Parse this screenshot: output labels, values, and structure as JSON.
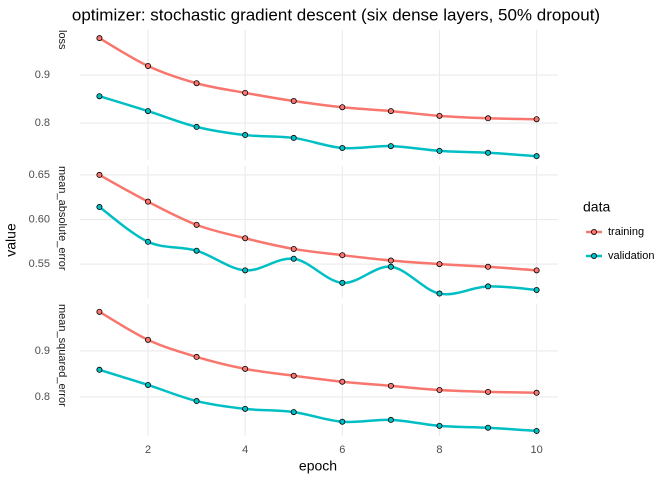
{
  "title": "optimizer: stochastic gradient descent (six dense layers, 50% dropout)",
  "x_label": "epoch",
  "y_label": "value",
  "legend_title": "data",
  "chart_data": [
    {
      "type": "line",
      "facet": "loss",
      "x": [
        1,
        2,
        3,
        4,
        5,
        6,
        7,
        8,
        9,
        10
      ],
      "series": [
        {
          "name": "training",
          "color": "#F8766D",
          "values": [
            0.977,
            0.919,
            0.883,
            0.863,
            0.846,
            0.833,
            0.825,
            0.815,
            0.81,
            0.808
          ]
        },
        {
          "name": "validation",
          "color": "#00BFC4",
          "values": [
            0.856,
            0.825,
            0.792,
            0.775,
            0.769,
            0.748,
            0.752,
            0.742,
            0.738,
            0.731
          ]
        }
      ],
      "xlim": [
        0.6,
        10.44
      ],
      "xticks": [
        2,
        4,
        6,
        8,
        10
      ],
      "ylim": [
        0.723,
        0.994
      ],
      "yticks": [
        0.8,
        0.9
      ],
      "grid": true
    },
    {
      "type": "line",
      "facet": "mean_absolute_error",
      "x": [
        1,
        2,
        3,
        4,
        5,
        6,
        7,
        8,
        9,
        10
      ],
      "series": [
        {
          "name": "training",
          "color": "#F8766D",
          "values": [
            0.65,
            0.62,
            0.594,
            0.579,
            0.567,
            0.56,
            0.554,
            0.55,
            0.547,
            0.543
          ]
        },
        {
          "name": "validation",
          "color": "#00BFC4",
          "values": [
            0.614,
            0.575,
            0.565,
            0.543,
            0.556,
            0.529,
            0.547,
            0.517,
            0.525,
            0.521
          ]
        }
      ],
      "xlim": [
        0.6,
        10.44
      ],
      "xticks": [
        2,
        4,
        6,
        8,
        10
      ],
      "ylim": [
        0.512,
        0.66
      ],
      "yticks": [
        0.55,
        {
          "value": 0.6,
          "label": "0.60"
        },
        0.65
      ],
      "grid": true
    },
    {
      "type": "line",
      "facet": "mean_squared_error",
      "x": [
        1,
        2,
        3,
        4,
        5,
        6,
        7,
        8,
        9,
        10
      ],
      "series": [
        {
          "name": "training",
          "color": "#F8766D",
          "values": [
            0.985,
            0.924,
            0.887,
            0.861,
            0.846,
            0.833,
            0.824,
            0.815,
            0.811,
            0.809
          ]
        },
        {
          "name": "validation",
          "color": "#00BFC4",
          "values": [
            0.859,
            0.826,
            0.791,
            0.774,
            0.767,
            0.746,
            0.75,
            0.737,
            0.733,
            0.726
          ]
        }
      ],
      "xlim": [
        0.6,
        10.44
      ],
      "xticks": [
        2,
        4,
        6,
        8,
        10
      ],
      "ylim": [
        0.715,
        1.002
      ],
      "yticks": [
        0.8,
        0.9
      ],
      "grid": true
    }
  ]
}
